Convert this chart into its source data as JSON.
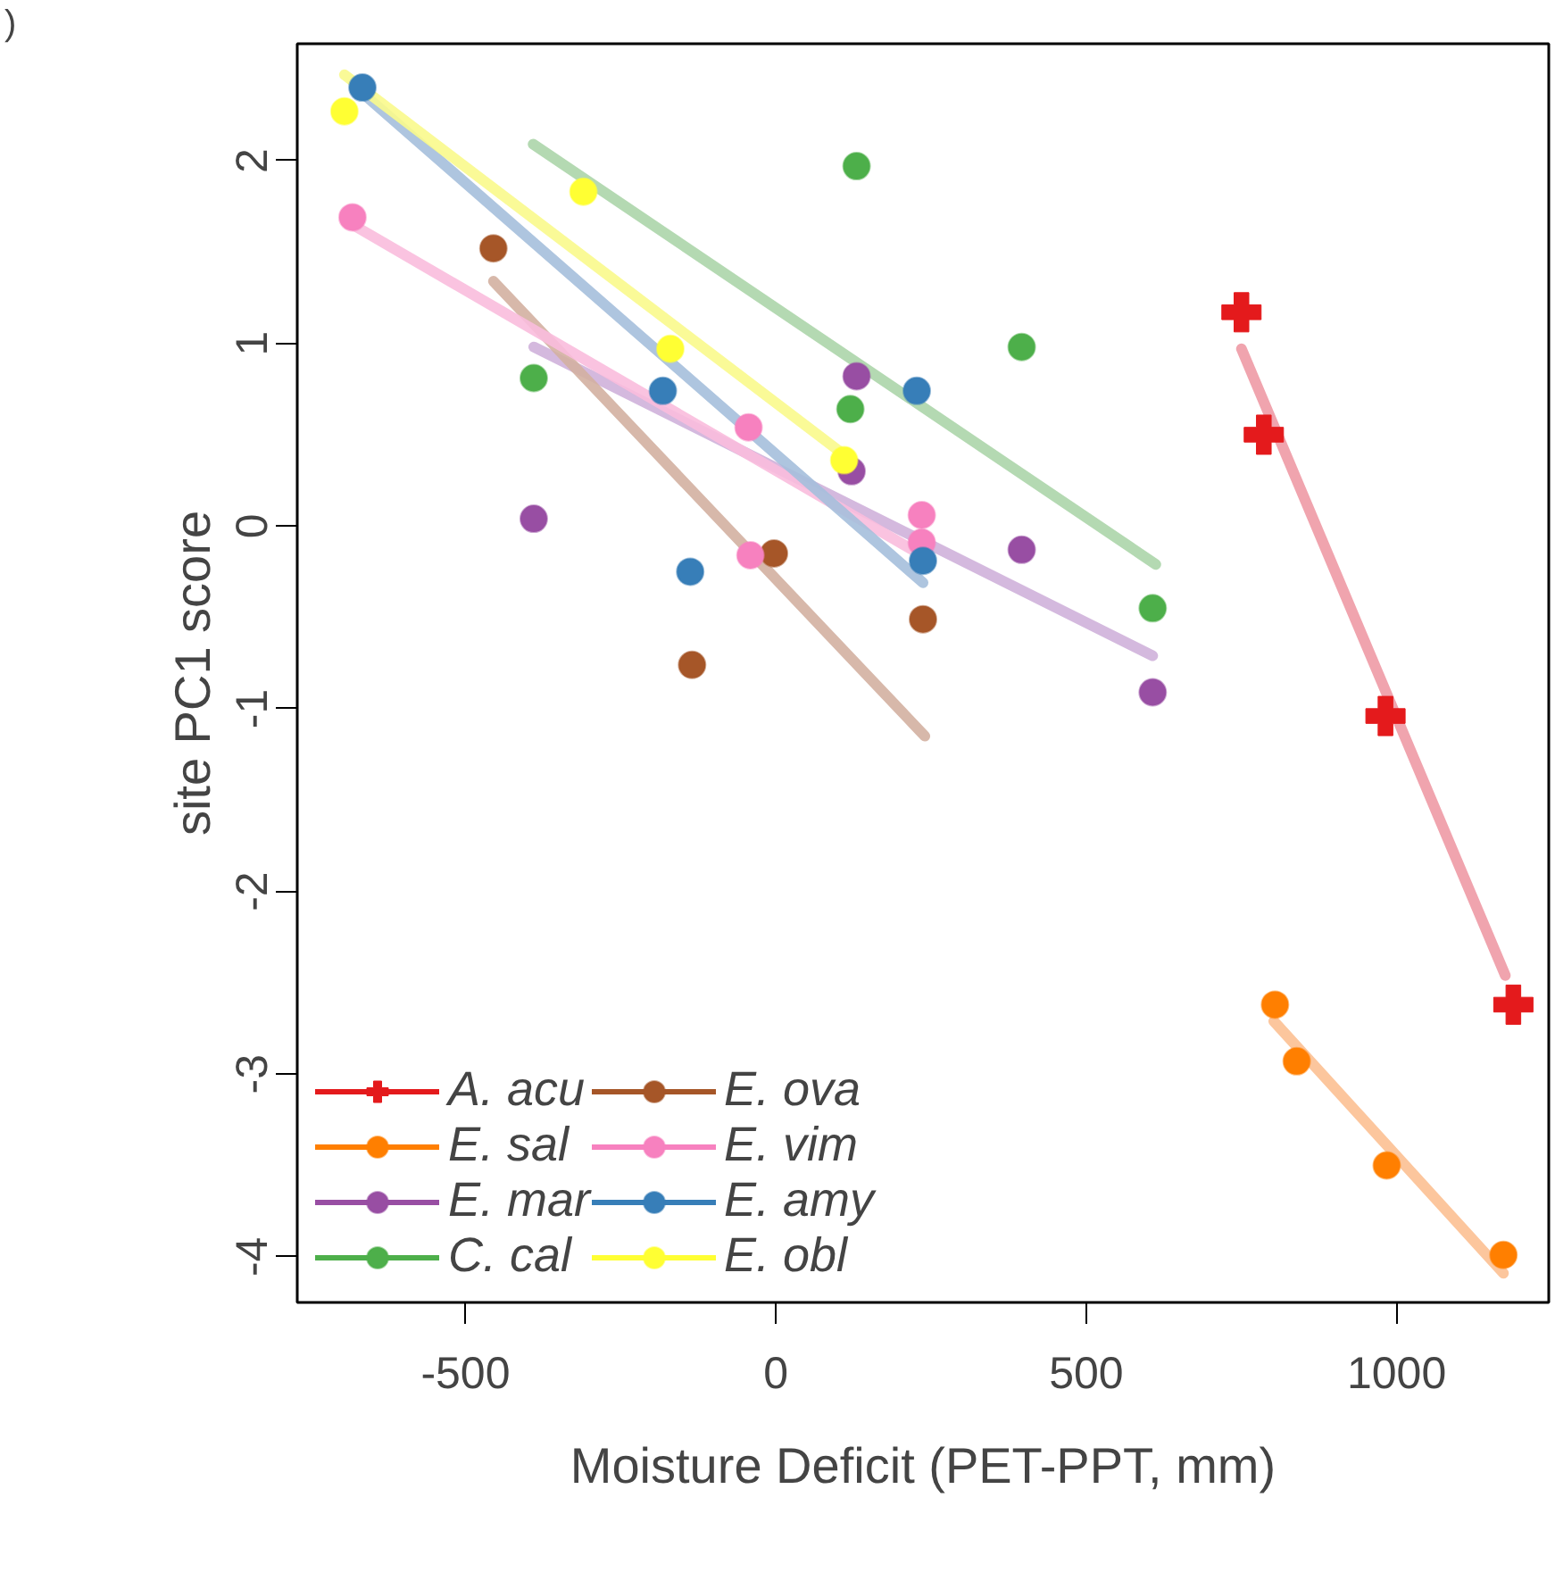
{
  "chart_data": {
    "type": "scatter",
    "xlabel": "Moisture Deficit (PET-PPT, mm)",
    "ylabel": "site PC1 score",
    "annotations": [
      ")"
    ],
    "xlim": [
      -771,
      1245
    ],
    "ylim": [
      -4.25,
      2.64
    ],
    "xticks": [
      -500,
      0,
      500,
      1000
    ],
    "yticks": [
      -4,
      -3,
      -2,
      -1,
      0,
      1,
      2
    ],
    "grid": false,
    "legend": "bottom left",
    "marker": "circle",
    "series": [
      {
        "name": "A. acu",
        "color": "#e41a1c",
        "marker": "cross",
        "x": [
          750,
          786,
          982,
          1188
        ],
        "values": [
          1.17,
          0.5,
          -1.04,
          -2.62
        ]
      },
      {
        "name": "E. sal",
        "color": "#ff7f00",
        "x": [
          804,
          839,
          984,
          1172
        ],
        "values": [
          -2.62,
          -2.93,
          -3.5,
          -3.99
        ]
      },
      {
        "name": "E. mar",
        "color": "#984ea3",
        "x": [
          -390,
          130,
          122,
          396,
          607
        ],
        "values": [
          0.04,
          0.82,
          0.3,
          -0.13,
          -0.91
        ]
      },
      {
        "name": "C. cal",
        "color": "#4daf4a",
        "x": [
          130,
          -390,
          120,
          396,
          607
        ],
        "values": [
          1.97,
          0.81,
          0.64,
          0.98,
          -0.45
        ]
      },
      {
        "name": "E. ova",
        "color": "#a65628",
        "x": [
          -455,
          -135,
          -3,
          237
        ],
        "values": [
          1.52,
          -0.76,
          -0.15,
          -0.51
        ]
      },
      {
        "name": "E. vim",
        "color": "#f781bf",
        "x": [
          -682,
          -44,
          -41,
          235,
          235
        ],
        "values": [
          1.69,
          0.54,
          -0.16,
          0.06,
          -0.09
        ]
      },
      {
        "name": "E. amy",
        "color": "#377eb8",
        "x": [
          -666,
          -182,
          -138,
          227,
          237
        ],
        "values": [
          2.4,
          0.74,
          -0.25,
          0.74,
          -0.19
        ]
      },
      {
        "name": "E. obl",
        "color": "#ffff33",
        "x": [
          -695,
          -310,
          -170,
          110
        ],
        "values": [
          2.27,
          1.83,
          0.97,
          0.36
        ]
      },
      {
        "type": "line",
        "marker": "none",
        "color": "#ee9aa5",
        "x": [
          750,
          1175
        ],
        "values": [
          0.97,
          -2.46
        ]
      },
      {
        "type": "line",
        "marker": "none",
        "color": "#fcc092",
        "x": [
          802,
          1172
        ],
        "values": [
          -2.71,
          -4.09
        ]
      },
      {
        "type": "line",
        "marker": "none",
        "color": "#cfb1da",
        "x": [
          -390,
          607
        ],
        "values": [
          0.98,
          -0.71
        ]
      },
      {
        "type": "line",
        "marker": "none",
        "color": "#acd5aa",
        "x": [
          -391,
          612
        ],
        "values": [
          2.09,
          -0.21
        ]
      },
      {
        "type": "line",
        "marker": "none",
        "color": "#d3b0a1",
        "x": [
          -455,
          240
        ],
        "values": [
          1.34,
          -1.15
        ]
      },
      {
        "type": "line",
        "marker": "none",
        "color": "#f9bddd",
        "x": [
          -682,
          235
        ],
        "values": [
          1.65,
          -0.16
        ]
      },
      {
        "type": "line",
        "marker": "none",
        "color": "#a5bfdc",
        "x": [
          -666,
          237
        ],
        "values": [
          2.37,
          -0.31
        ]
      },
      {
        "type": "line",
        "marker": "none",
        "color": "#fafa8c",
        "x": [
          -695,
          110
        ],
        "values": [
          2.47,
          0.39
        ]
      }
    ]
  }
}
